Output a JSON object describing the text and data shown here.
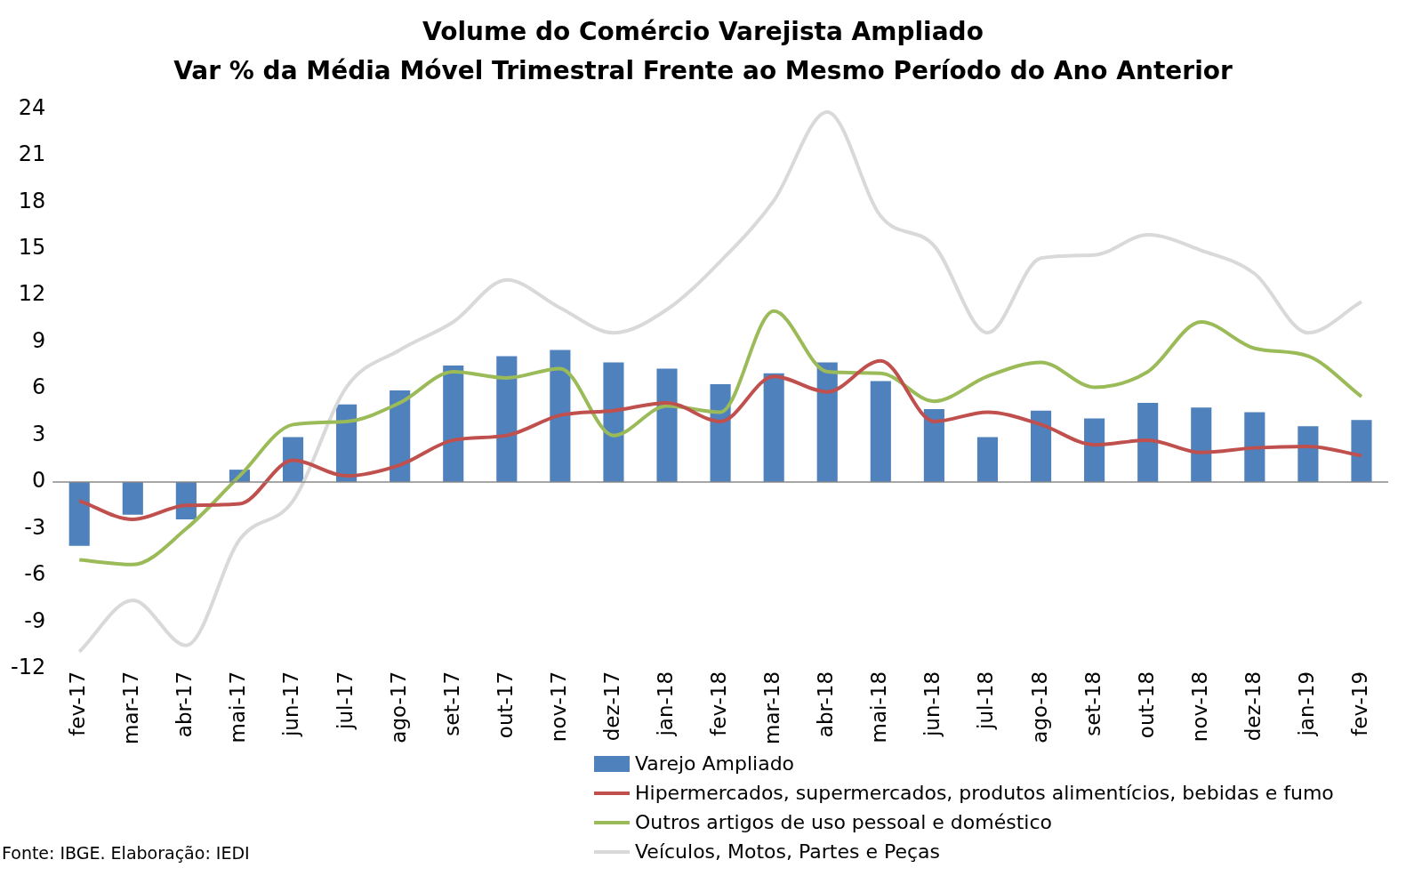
{
  "chart_data": {
    "type": "bar",
    "title": "Volume do Comércio Varejista Ampliado",
    "subtitle": "Var % da Média Móvel Trimestral Frente ao Mesmo Período do Ano Anterior",
    "categories": [
      "fev-17",
      "mar-17",
      "abr-17",
      "mai-17",
      "jun-17",
      "jul-17",
      "ago-17",
      "set-17",
      "out-17",
      "nov-17",
      "dez-17",
      "jan-18",
      "fev-18",
      "mar-18",
      "abr-18",
      "mai-18",
      "jun-18",
      "jul-18",
      "ago-18",
      "set-18",
      "out-18",
      "nov-18",
      "dez-18",
      "jan-19",
      "fev-19"
    ],
    "series": [
      {
        "name": "Varejo Ampliado",
        "color": "#4f81bd",
        "values": [
          -4.1,
          -2.1,
          -2.4,
          0.8,
          2.9,
          5.0,
          5.9,
          7.5,
          8.1,
          8.5,
          7.7,
          7.3,
          6.3,
          7.0,
          7.7,
          6.5,
          4.7,
          2.9,
          4.6,
          4.1,
          5.1,
          4.8,
          4.5,
          3.6,
          4.0
        ]
      },
      {
        "name": "Hipermercados, supermercados, produtos alimentícios, bebidas e fumo",
        "type": "line",
        "color": "#c0504d",
        "values": [
          -1.2,
          -2.4,
          -1.5,
          -1.4,
          1.4,
          0.4,
          1.1,
          2.7,
          3.0,
          4.3,
          4.6,
          5.1,
          3.9,
          6.8,
          5.8,
          7.8,
          3.9,
          4.5,
          3.7,
          2.4,
          2.7,
          1.9,
          2.2,
          2.3,
          1.7
        ]
      },
      {
        "name": "Outros artigos de uso pessoal e doméstico",
        "type": "line",
        "color": "#9bbb59",
        "values": [
          -5.0,
          -5.3,
          -3.0,
          0.4,
          3.7,
          3.9,
          5.1,
          7.1,
          6.7,
          7.3,
          3.0,
          4.9,
          4.5,
          11.0,
          7.1,
          7.0,
          5.2,
          6.8,
          7.7,
          6.1,
          7.1,
          10.3,
          8.6,
          8.1,
          5.5
        ]
      },
      {
        "name": "Veículos, Motos, Partes e Peças",
        "type": "line",
        "color": "#d9d9d9",
        "values": [
          -10.9,
          -7.6,
          -10.5,
          -3.7,
          -1.2,
          6.1,
          8.5,
          10.3,
          13.0,
          11.2,
          9.6,
          11.1,
          14.2,
          18.1,
          23.8,
          17.1,
          15.2,
          9.6,
          14.4,
          14.6,
          15.9,
          14.9,
          13.4,
          9.6,
          11.6
        ]
      }
    ],
    "ylim": [
      -12,
      24
    ],
    "yticks": [
      -12,
      -9,
      -6,
      -3,
      0,
      3,
      6,
      9,
      12,
      15,
      18,
      21,
      24
    ],
    "legend": "bottom",
    "marker": "none",
    "line_style": "solid",
    "annotations": [
      "Fonte: IBGE. Elaboração: IEDI"
    ]
  }
}
